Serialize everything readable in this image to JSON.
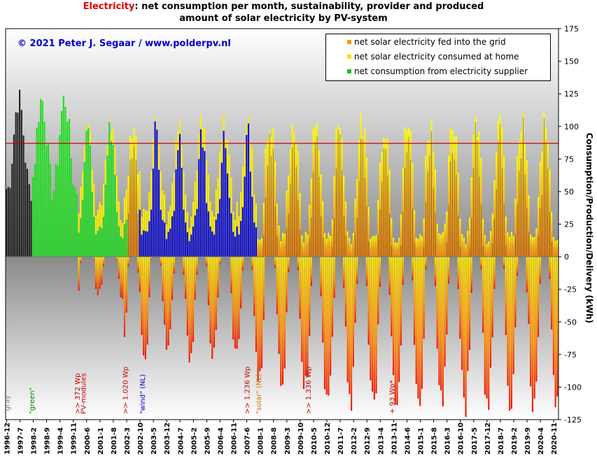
{
  "title": {
    "highlight": "Electricity",
    "line1_rest": ": net consumption per month, sustainability, provider and produced",
    "line2": "amount of solar electricity by PV-system"
  },
  "credit": "© 2021 Peter J. Segaar / www.polderpv.nl",
  "legend": [
    {
      "label": "net solar electricity fed into the grid",
      "color": "#ff8800"
    },
    {
      "label": "net solar electricity consumed at home",
      "color": "#ffdd00"
    },
    {
      "label": "net consumption from electricity supplier",
      "color": "#22bb22"
    }
  ],
  "colors": {
    "gray": "#222222",
    "green": "#22dd22",
    "blue": "#1010cc",
    "solar_consumed": "#ffee00",
    "solar_fed": "#ee2200",
    "reference_line": "#cc0000",
    "annot_red": "#cc0000",
    "annot_blue": "#0000cc",
    "annot_green": "#008800",
    "annot_gray": "#888888",
    "annot_orange": "#cc7700"
  },
  "chart_data": {
    "type": "bar",
    "ylabel": "Consumption/Production/Delivery (kWh)",
    "ylim": [
      -125,
      175
    ],
    "yticks": [
      -125,
      -100,
      -75,
      -50,
      -25,
      0,
      25,
      50,
      75,
      100,
      125,
      150,
      175
    ],
    "reference_line": 87,
    "xticks": [
      "1996-12",
      "1997-7",
      "1998-2",
      "1998-9",
      "1999-4",
      "1999-11",
      "2000-6",
      "2001-1",
      "2001-8",
      "2002-3",
      "2002-10",
      "2003-5",
      "2003-12",
      "2004-7",
      "2005-2",
      "2005-9",
      "2006-4",
      "2006-11",
      "2007-6",
      "2008-1",
      "2008-8",
      "2009-3",
      "2009-10",
      "2010-5",
      "2010-12",
      "2011-7",
      "2012-2",
      "2012-9",
      "2013-4",
      "2013-11",
      "2014-6",
      "2015-1",
      "2015-8",
      "2016-3",
      "2016-10",
      "2017-5",
      "2017-12",
      "2018-7",
      "2019-2",
      "2019-9",
      "2020-4",
      "2020-11"
    ],
    "annotations": [
      {
        "text": "\"gray\"",
        "month": "1996-12",
        "color": "gray"
      },
      {
        "text": "\"green\"",
        "month": "1998-1",
        "color": "green"
      },
      {
        "text": ">> 372 Wp",
        "month": "2000-1",
        "color": "red"
      },
      {
        "text": "PV-modules",
        "month": "2000-4",
        "color": "red"
      },
      {
        "text": ">> 1.020 Wp",
        "month": "2002-2",
        "color": "red"
      },
      {
        "text": "\"wind\" (NL)",
        "month": "2002-11",
        "color": "blue"
      },
      {
        "text": ">> 1.236 Wp",
        "month": "2007-6",
        "color": "red"
      },
      {
        "text": "\"solar\" (NL)",
        "month": "2007-12",
        "color": "orange"
      },
      {
        "text": ">> 1.336 Wp",
        "month": "2010-2",
        "color": "red"
      },
      {
        "text": "+ 93 Wp*",
        "month": "2013-10",
        "color": "red"
      }
    ],
    "series_description": "Monthly net consumption from supplier (gray 1996-12..1998-1, green 1998-2..2002-3, blue wind 2002-10..2007-11), solar consumed at home and solar fed into grid (negative) from 2000-2 onward."
  }
}
